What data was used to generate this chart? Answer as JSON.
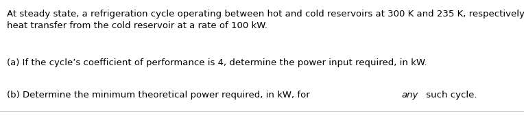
{
  "background_color": "#ffffff",
  "text_color": "#000000",
  "line_color": "#cccccc",
  "paragraph1": "At steady state, a refrigeration cycle operating between hot and cold reservoirs at 300 K and 235 K, respectively, removes energy by\nheat transfer from the cold reservoir at a rate of 100 kW.",
  "paragraph2": "(a) If the cycle’s coefficient of performance is 4, determine the power input required, in kW.",
  "paragraph3_normal": "(b) Determine the minimum theoretical power required, in kW, for ",
  "paragraph3_italic": "any",
  "paragraph3_end": " such cycle.",
  "font_size": 9.5,
  "fig_width": 7.64,
  "fig_height": 1.69,
  "dpi": 100
}
